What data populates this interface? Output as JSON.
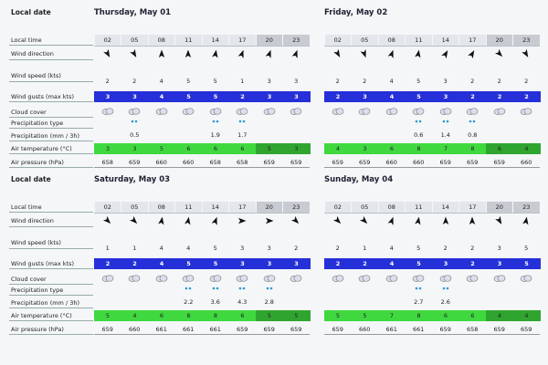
{
  "row_labels": {
    "local_date": "Local date",
    "local_time": "Local time",
    "wind_direction": "Wind direction",
    "wind_speed": "Wind speed (kts)",
    "wind_gusts": "Wind gusts (max kts)",
    "cloud_cover": "Cloud cover",
    "precipitation_type": "Precipitation type",
    "precipitation": "Precipitation (mm / 3h)",
    "air_temperature": "Air temperature (°C)",
    "air_pressure": "Air pressure (hPa)"
  },
  "times": [
    "02",
    "05",
    "08",
    "11",
    "14",
    "17",
    "20",
    "23"
  ],
  "days": [
    {
      "date": "Thursday, May 01",
      "wind_speed": [
        2,
        2,
        4,
        5,
        5,
        1,
        3,
        3
      ],
      "wind_gusts": [
        3,
        3,
        4,
        5,
        5,
        2,
        3,
        3
      ],
      "precipitation": [
        null,
        0.5,
        null,
        null,
        1.9,
        1.7,
        null,
        null
      ],
      "air_temperature": [
        3,
        3,
        5,
        6,
        6,
        6,
        5,
        3
      ],
      "air_pressure": [
        658,
        659,
        660,
        660,
        658,
        658,
        659,
        659
      ]
    },
    {
      "date": "Friday, May 02",
      "wind_speed": [
        2,
        2,
        4,
        5,
        3,
        2,
        2,
        2
      ],
      "wind_gusts": [
        2,
        3,
        4,
        5,
        3,
        2,
        2,
        2
      ],
      "precipitation": [
        null,
        null,
        null,
        0.6,
        1.4,
        0.8,
        null,
        null
      ],
      "air_temperature": [
        4,
        3,
        6,
        8,
        7,
        8,
        6,
        4
      ],
      "air_pressure": [
        659,
        659,
        660,
        660,
        659,
        659,
        659,
        660
      ]
    },
    {
      "date": "Saturday, May 03",
      "wind_speed": [
        1,
        1,
        4,
        4,
        5,
        3,
        3,
        2
      ],
      "wind_gusts": [
        2,
        2,
        4,
        5,
        5,
        3,
        3,
        3
      ],
      "precipitation": [
        null,
        null,
        null,
        2.2,
        3.6,
        4.3,
        2.8,
        null
      ],
      "air_temperature": [
        5,
        4,
        6,
        8,
        8,
        6,
        5,
        5
      ],
      "air_pressure": [
        659,
        660,
        661,
        661,
        661,
        659,
        659,
        659
      ]
    },
    {
      "date": "Sunday, May 04",
      "wind_speed": [
        2,
        1,
        4,
        5,
        2,
        2,
        3,
        5
      ],
      "wind_gusts": [
        2,
        2,
        4,
        5,
        3,
        2,
        3,
        5
      ],
      "precipitation": [
        null,
        null,
        null,
        2.7,
        2.6,
        null,
        null,
        null
      ],
      "air_temperature": [
        5,
        5,
        7,
        8,
        6,
        6,
        4,
        4
      ],
      "air_pressure": [
        659,
        660,
        661,
        661,
        659,
        658,
        659,
        659
      ]
    }
  ]
}
